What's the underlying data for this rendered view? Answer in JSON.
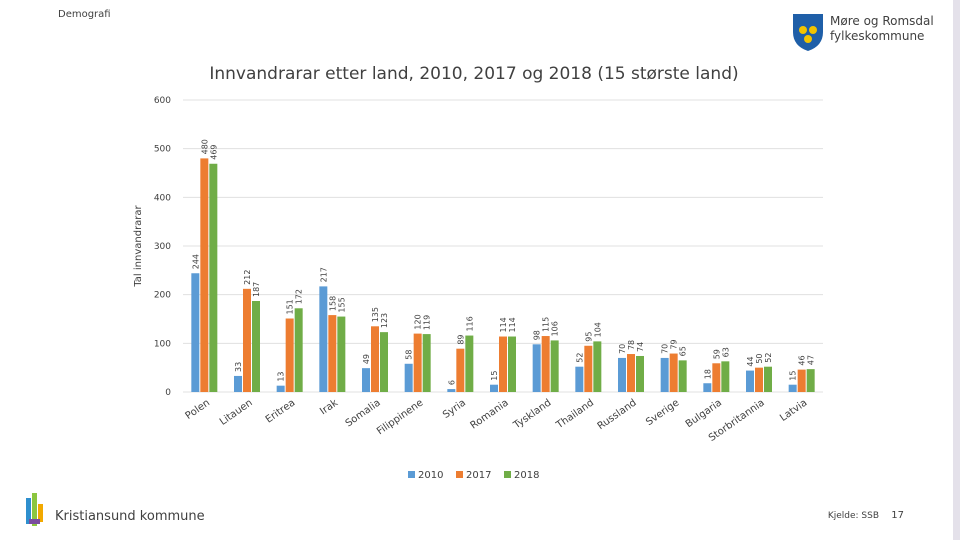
{
  "header": {
    "section": "Demografi",
    "logo": [
      "Møre og Romsdal",
      "fylkeskommune"
    ]
  },
  "chart_data": {
    "type": "bar",
    "title": "Innvandrarar etter land, 2010, 2017 og 2018 (15 største land)",
    "y_label": "Tal innvandrarar",
    "categories": [
      "Polen",
      "Litauen",
      "Eritrea",
      "Irak",
      "Somalia",
      "Filippinene",
      "Syria",
      "Romania",
      "Tyskland",
      "Thailand",
      "Russland",
      "Sverige",
      "Bulgaria",
      "Storbritannia",
      "Latvia"
    ],
    "series": [
      {
        "name": "2010",
        "color": "#5b9bd5",
        "values": [
          244,
          33,
          13,
          217,
          49,
          58,
          6,
          15,
          98,
          52,
          70,
          70,
          18,
          44,
          15
        ]
      },
      {
        "name": "2017",
        "color": "#ed7d31",
        "values": [
          480,
          212,
          151,
          158,
          135,
          120,
          89,
          114,
          115,
          95,
          78,
          79,
          59,
          50,
          46
        ]
      },
      {
        "name": "2018",
        "color": "#70ad47",
        "values": [
          469,
          187,
          172,
          155,
          123,
          119,
          116,
          114,
          106,
          104,
          74,
          65,
          63,
          52,
          47
        ]
      }
    ],
    "ylim": [
      0,
      600
    ],
    "yticks": [
      0,
      100,
      200,
      300,
      400,
      500,
      600
    ],
    "grid": true,
    "legend": "bottom"
  },
  "footer": {
    "organization": "Kristiansund kommune",
    "source": "Kjelde: SSB",
    "page": 17
  }
}
